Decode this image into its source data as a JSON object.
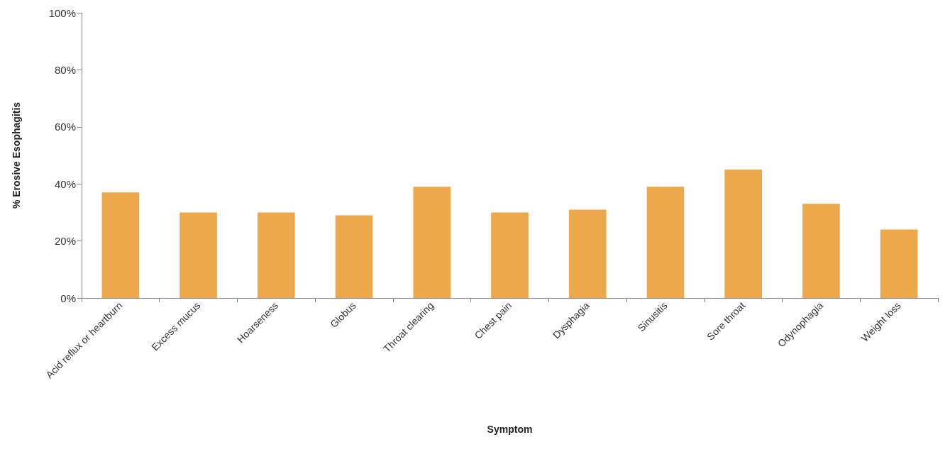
{
  "chart_data": {
    "type": "bar",
    "xlabel": "Symptom",
    "ylabel": "% Erosive Esophagitis",
    "categories": [
      "Acid reflux or heartburn",
      "Excess mucus",
      "Hoarseness",
      "Globus",
      "Throat clearing",
      "Chest pain",
      "Dysphagia",
      "Sinusitis",
      "Sore throat",
      "Odynophagia",
      "Weight loss"
    ],
    "values": [
      37,
      30,
      30,
      29,
      39,
      30,
      31,
      39,
      45,
      33,
      24
    ],
    "color": "#eda84c",
    "ylim": [
      0,
      100
    ],
    "yticks": [
      {
        "value": 0,
        "label": "0%"
      },
      {
        "value": 20,
        "label": "20%"
      },
      {
        "value": 40,
        "label": "40%"
      },
      {
        "value": 60,
        "label": "60%"
      },
      {
        "value": 80,
        "label": "80%"
      },
      {
        "value": 100,
        "label": "100%"
      }
    ],
    "grid": false
  }
}
